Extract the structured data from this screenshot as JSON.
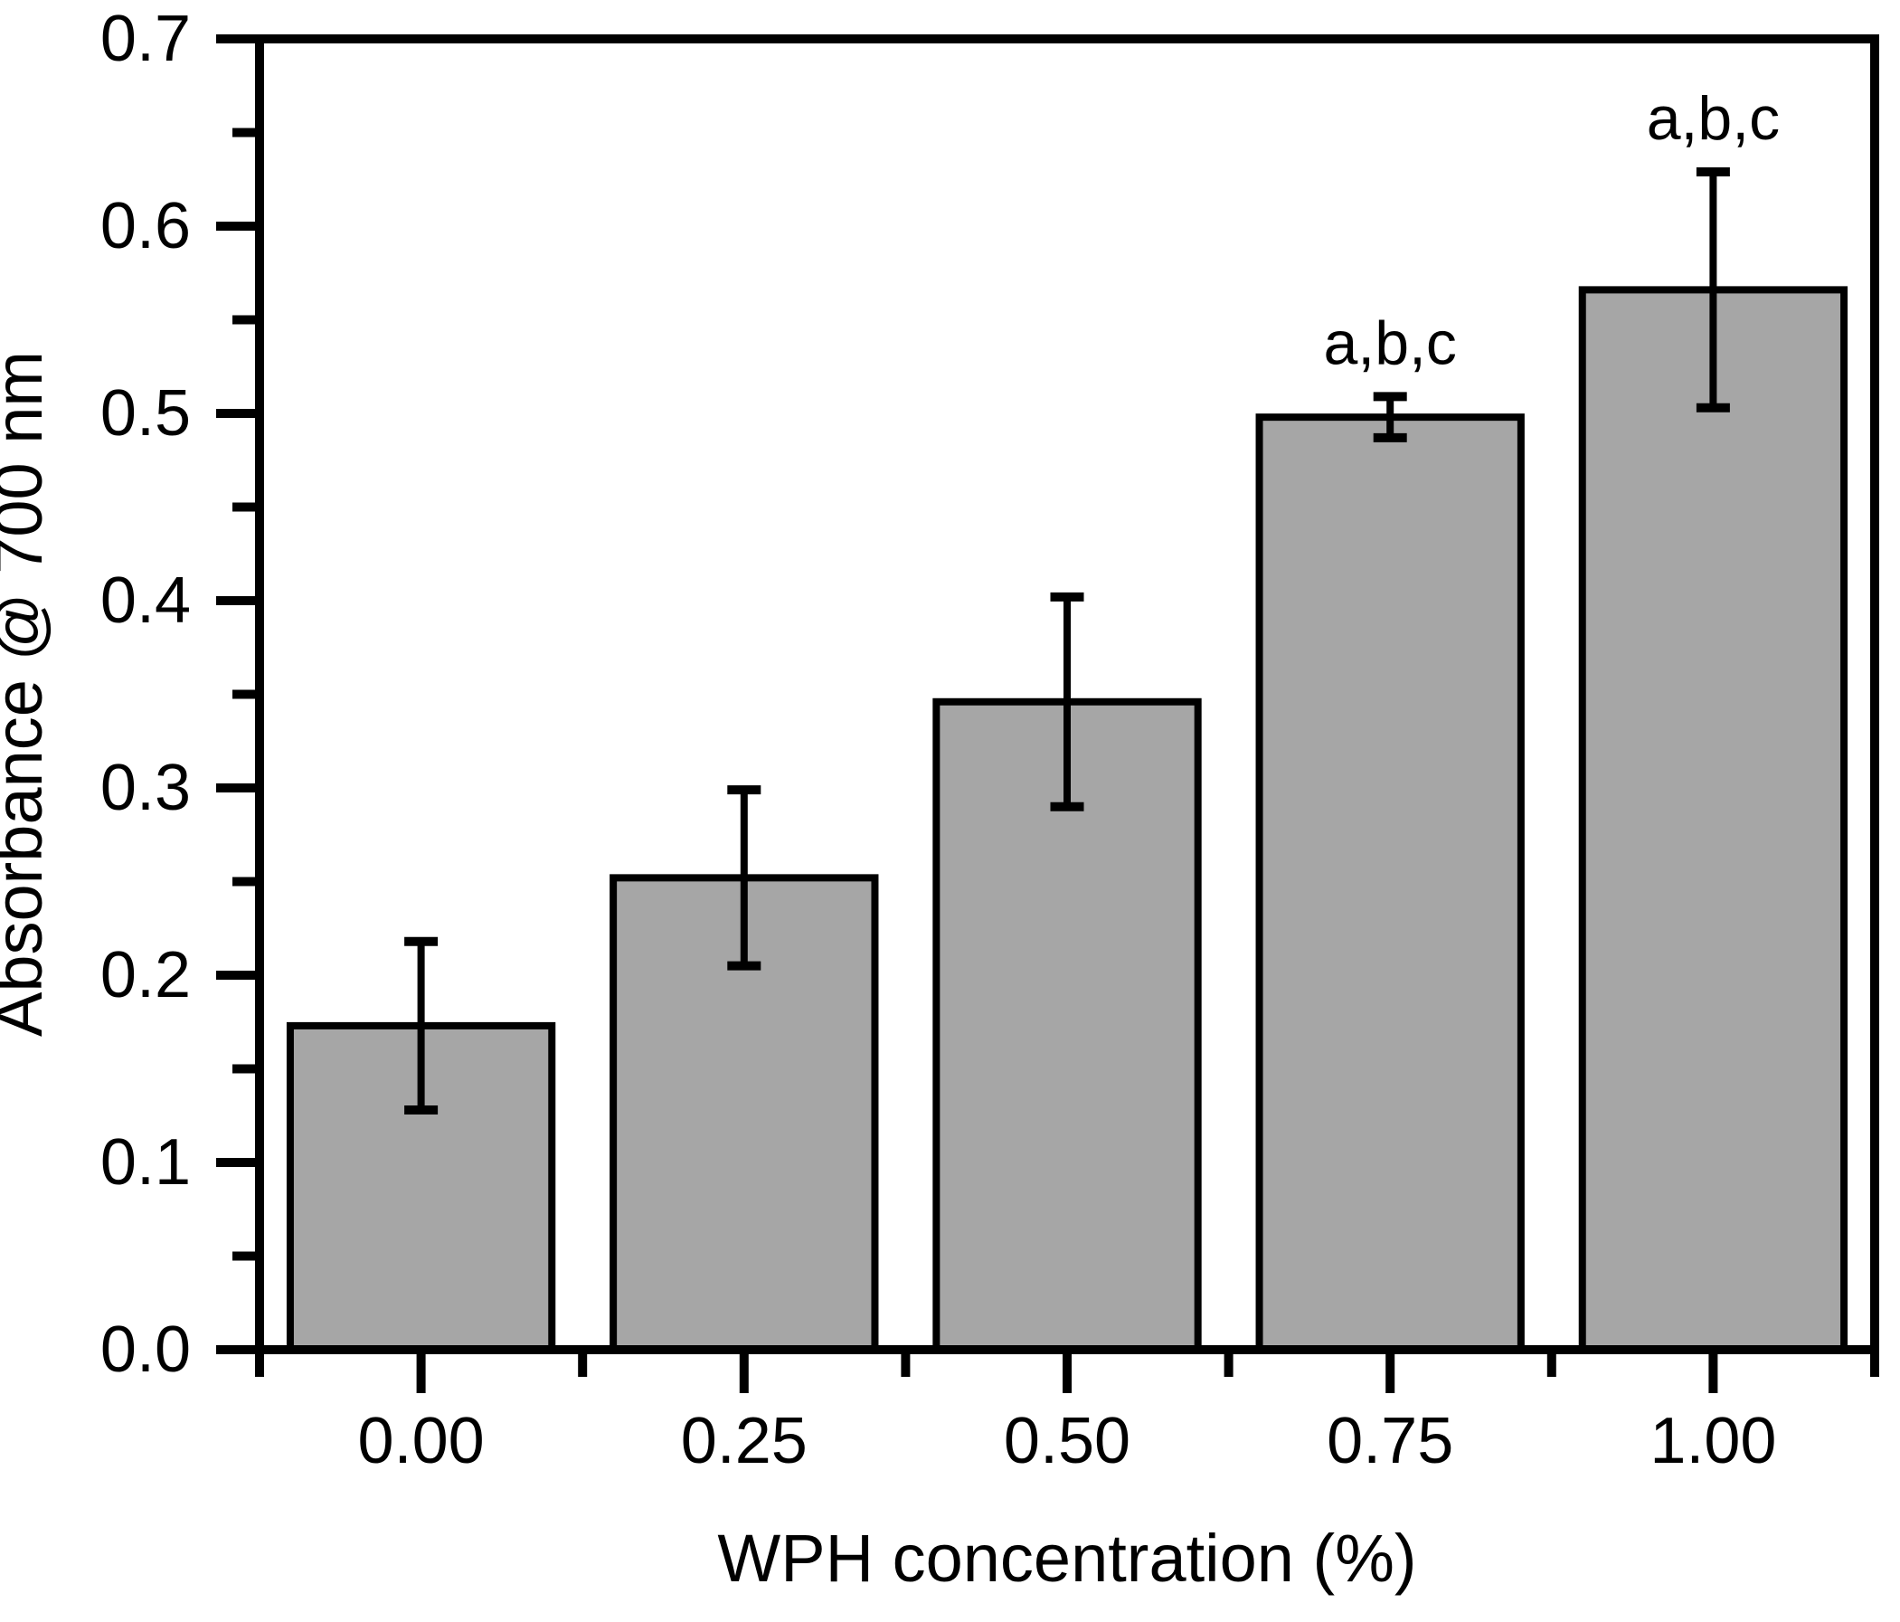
{
  "figure": {
    "background": "#ffffff",
    "line_color": "#000000"
  },
  "chart_data": {
    "type": "bar",
    "title": "",
    "xlabel": "WPH concentration (%)",
    "ylabel": "Absorbance @ 700 nm",
    "categories": [
      "0.00",
      "0.25",
      "0.50",
      "0.75",
      "1.00"
    ],
    "values": [
      0.173,
      0.252,
      0.346,
      0.498,
      0.566
    ],
    "errors": [
      0.045,
      0.047,
      0.056,
      0.011,
      0.063
    ],
    "error_style": "symmetric-caps",
    "annotations": [
      {
        "category_index": 3,
        "text": "a,b,c"
      },
      {
        "category_index": 4,
        "text": "a,b,c"
      }
    ],
    "ylim": [
      0.0,
      0.7
    ],
    "y_major_step": 0.1,
    "y_minor_step": 0.05,
    "y_tick_labels": [
      "0.0",
      "0.1",
      "0.2",
      "0.3",
      "0.4",
      "0.5",
      "0.6",
      "0.7"
    ],
    "grid": false,
    "legend": "none",
    "frame": "box",
    "bar_fill": "#a6a6a6",
    "bar_stroke": "#000000"
  }
}
